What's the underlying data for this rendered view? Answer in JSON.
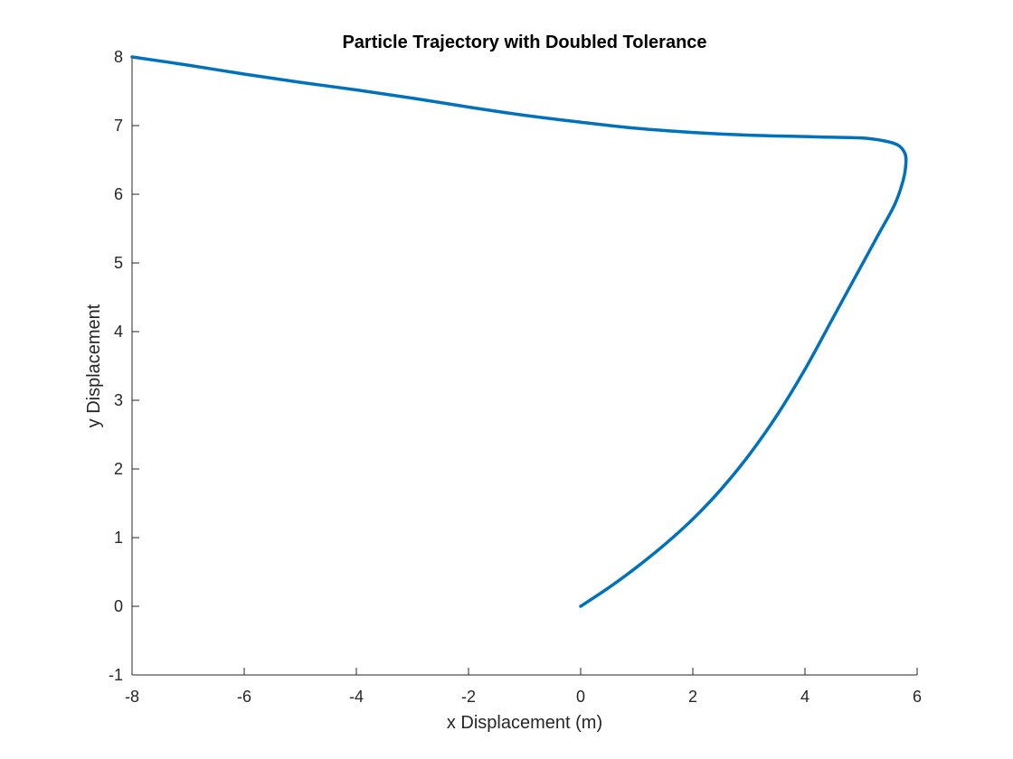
{
  "chart_data": {
    "type": "line",
    "title": "Particle Trajectory with Doubled Tolerance",
    "xlabel": "x Displacement (m)",
    "ylabel": "y Displacement",
    "xlim": [
      -8,
      6
    ],
    "ylim": [
      -1,
      8
    ],
    "x_ticks": [
      -8,
      -6,
      -4,
      -2,
      0,
      2,
      4,
      6
    ],
    "y_ticks": [
      -1,
      0,
      1,
      2,
      3,
      4,
      5,
      6,
      7,
      8
    ],
    "x_tick_labels": [
      "-8",
      "-6",
      "-4",
      "-2",
      "0",
      "2",
      "4",
      "6"
    ],
    "y_tick_labels": [
      "-1",
      "0",
      "1",
      "2",
      "3",
      "4",
      "5",
      "6",
      "7",
      "8"
    ],
    "grid": false,
    "legend": "none",
    "series": [
      {
        "color": "#0072BD",
        "x": [
          0,
          0.5,
          1.0,
          1.5,
          2.0,
          2.5,
          3.0,
          3.5,
          4.0,
          4.5,
          5.0,
          5.3,
          5.6,
          5.75,
          5.8,
          5.78,
          5.65,
          5.4,
          5.0,
          4.5,
          4.0,
          3.0,
          2.0,
          1.0,
          0.0,
          -1.0,
          -2.0,
          -3.0,
          -4.0,
          -5.0,
          -6.0,
          -7.0,
          -8.0
        ],
        "y": [
          0.0,
          0.27,
          0.57,
          0.9,
          1.27,
          1.7,
          2.2,
          2.78,
          3.45,
          4.2,
          4.95,
          5.4,
          5.85,
          6.2,
          6.45,
          6.6,
          6.72,
          6.78,
          6.82,
          6.83,
          6.84,
          6.86,
          6.9,
          6.96,
          7.05,
          7.15,
          7.27,
          7.4,
          7.52,
          7.63,
          7.75,
          7.88,
          8.0
        ]
      }
    ]
  }
}
